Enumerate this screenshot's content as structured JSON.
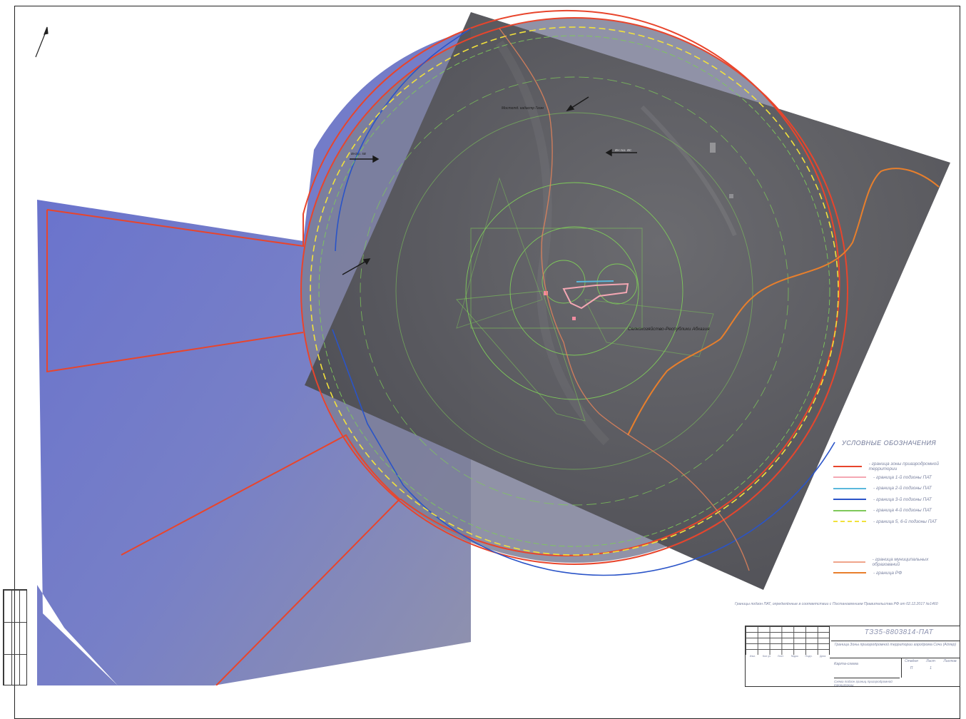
{
  "map": {
    "settlement_label": "Селкохозяйство-Республики Абхазия",
    "label_top": "Мостотд. кадастр Геом",
    "label_arrow_1": "ВН поз. ВС",
    "label_arrow_2": "ВНЗ р. 5В"
  },
  "legend": {
    "title": "УСЛОВНЫЕ ОБОЗНАЧЕНИЯ",
    "items": [
      {
        "label": "- граница зоны приаэродромной территории",
        "color": "#e8452c",
        "style": "solid"
      },
      {
        "label": "- граница 1-й подзоны ПАТ",
        "color": "#f4a7b3",
        "style": "solid"
      },
      {
        "label": "- граница 2-й подзоны ПАТ",
        "color": "#5ab8dc",
        "style": "solid"
      },
      {
        "label": "- граница 3-й подзоны ПАТ",
        "color": "#2a54c8",
        "style": "solid"
      },
      {
        "label": "- граница 4-й подзоны ПАТ",
        "color": "#7ec95a",
        "style": "solid"
      },
      {
        "label": "- граница 5, 6-й подзоны ПАТ",
        "color": "#f2e23c",
        "style": "dash"
      },
      {
        "label": "- граница муниципальных образований",
        "color": "#f0a48a",
        "style": "solid"
      },
      {
        "label": "- граница РФ",
        "color": "#e87f2c",
        "style": "solid"
      }
    ]
  },
  "footnote": "Границы подзон ПАТ, определённые в соответствии с Постановлением Правительства РФ от 02.12.2017 №1460",
  "title_block": {
    "code": "ТЗЗ5-8803814-ПАТ",
    "name": "Граница Зоны приаэродромной территории аэродрома Сочи (Адлер)",
    "stage_label": "Карта-схема",
    "sheet_headers": [
      "Стадия",
      "Лист",
      "Листов"
    ],
    "sheet_values": [
      "П",
      "1",
      ""
    ],
    "org": "Схема подзон границ приаэродромной территории",
    "col_headers": [
      "Изм.",
      "Кол.уч",
      "Лист",
      "№док",
      "Подп.",
      "Дата"
    ]
  },
  "colors": {
    "border_red": "#e8452c",
    "subzone3_blue": "#2a54c8",
    "subzone4_green": "#7ec95a",
    "subzone56_yellow": "#f2e23c",
    "rf_border_orange": "#e87f2c",
    "sector_fill": "#6b74c9",
    "satellite_fill": "#4f4f55"
  }
}
